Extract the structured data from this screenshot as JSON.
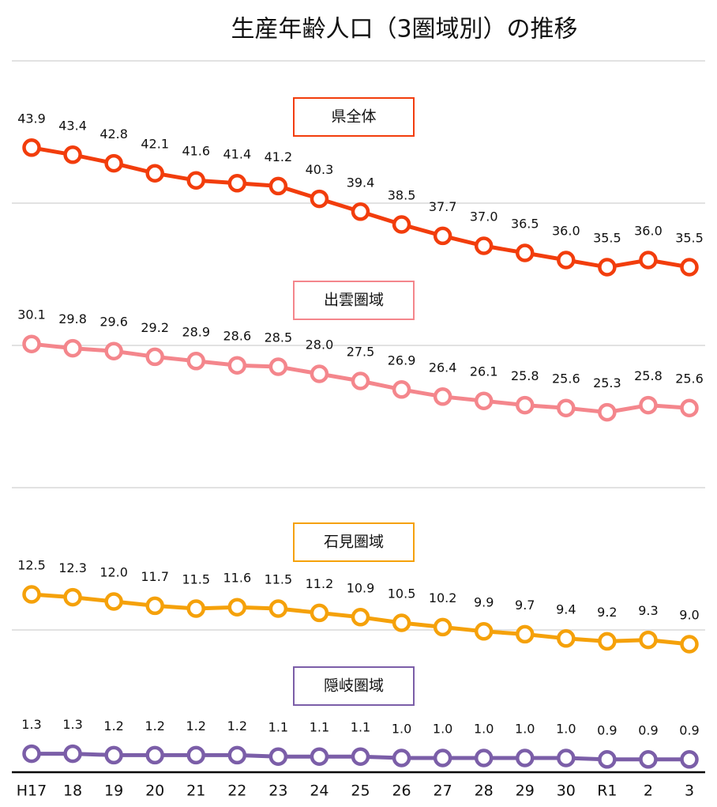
{
  "chart_data": {
    "type": "line",
    "title": "生産年齢人口（3圏域別）の推移",
    "categories": [
      "H17",
      "18",
      "19",
      "20",
      "21",
      "22",
      "23",
      "24",
      "25",
      "26",
      "27",
      "28",
      "29",
      "30",
      "R1",
      "2",
      "3"
    ],
    "series": [
      {
        "name": "県全体",
        "color": "#f23d0c",
        "values": [
          43.9,
          43.4,
          42.8,
          42.1,
          41.6,
          41.4,
          41.2,
          40.3,
          39.4,
          38.5,
          37.7,
          37.0,
          36.5,
          36.0,
          35.5,
          36.0,
          35.5
        ],
        "value_labels": [
          "43.9",
          "43.4",
          "42.8",
          "42.1",
          "41.6",
          "41.4",
          "41.2",
          "40.3",
          "39.4",
          "38.5",
          "37.7",
          "37.0",
          "36.5",
          "36.0",
          "35.5",
          "36.0",
          "35.5"
        ]
      },
      {
        "name": "出雲圏域",
        "color": "#f4868c",
        "values": [
          30.1,
          29.8,
          29.6,
          29.2,
          28.9,
          28.6,
          28.5,
          28.0,
          27.5,
          26.9,
          26.4,
          26.1,
          25.8,
          25.6,
          25.3,
          25.8,
          25.6
        ],
        "value_labels": [
          "30.1",
          "29.8",
          "29.6",
          "29.2",
          "28.9",
          "28.6",
          "28.5",
          "28.0",
          "27.5",
          "26.9",
          "26.4",
          "26.1",
          "25.8",
          "25.6",
          "25.3",
          "25.8",
          "25.6"
        ]
      },
      {
        "name": "石見圏域",
        "color": "#f5a10a",
        "values": [
          12.5,
          12.3,
          12.0,
          11.7,
          11.5,
          11.6,
          11.5,
          11.2,
          10.9,
          10.5,
          10.2,
          9.9,
          9.7,
          9.4,
          9.2,
          9.3,
          9.0
        ],
        "value_labels": [
          "12.5",
          "12.3",
          "12.0",
          "11.7",
          "11.5",
          "11.6",
          "11.5",
          "11.2",
          "10.9",
          "10.5",
          "10.2",
          "9.9",
          "9.7",
          "9.4",
          "9.2",
          "9.3",
          "9.0"
        ]
      },
      {
        "name": "隠岐圏域",
        "color": "#7b5ea8",
        "values": [
          1.3,
          1.3,
          1.2,
          1.2,
          1.2,
          1.2,
          1.1,
          1.1,
          1.1,
          1.0,
          1.0,
          1.0,
          1.0,
          1.0,
          0.9,
          0.9,
          0.9
        ],
        "value_labels": [
          "1.3",
          "1.3",
          "1.2",
          "1.2",
          "1.2",
          "1.2",
          "1.1",
          "1.1",
          "1.1",
          "1.0",
          "1.0",
          "1.0",
          "1.0",
          "1.0",
          "0.9",
          "0.9",
          "0.9"
        ]
      }
    ],
    "ylim": [
      0,
      50
    ],
    "yticks": [
      0,
      10,
      20,
      30,
      40,
      50
    ],
    "grid": true
  }
}
